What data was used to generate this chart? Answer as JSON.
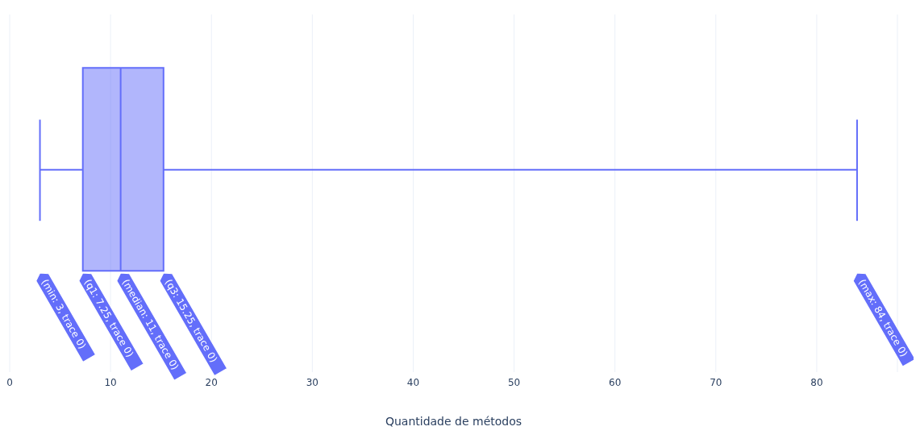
{
  "chart_data": {
    "type": "box",
    "orientation": "horizontal",
    "categories": [
      null
    ],
    "color": "#636efa",
    "boxes": [
      {
        "low": 3,
        "q1": 7.25,
        "median": 11,
        "q3": 15.25,
        "high": 84
      }
    ],
    "xlabel": "Quantidade de métodos",
    "xlim": [
      0,
      88
    ],
    "xticks": [
      0,
      10,
      20,
      30,
      40,
      50,
      60,
      70,
      80
    ],
    "grid": "x",
    "annotations": [
      "(min: 3, trace 0)",
      "(q1: 7.25, trace 0)",
      "(median: 11, trace 0)",
      "(q3: 15.25, trace 0)",
      "(max: 84, trace 0)"
    ]
  }
}
